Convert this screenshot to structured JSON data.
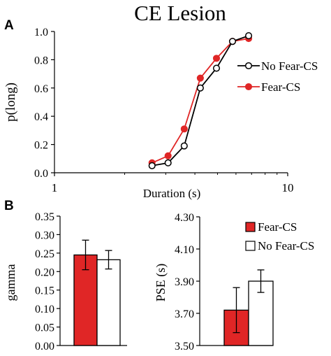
{
  "colors": {
    "fear": "#e02626",
    "nofear": "#ffffff",
    "stroke": "#000000"
  },
  "panels": {
    "a": "A",
    "b": "B"
  },
  "chart_data": [
    {
      "type": "line",
      "title": "CE Lesion",
      "xlabel": "Duration (s)",
      "ylabel": "p(long)",
      "x_scale": "log",
      "xlim": [
        1,
        10
      ],
      "ylim": [
        0,
        1
      ],
      "x_ticks": [
        "1",
        "10"
      ],
      "y_ticks": [
        "0.0",
        "0.2",
        "0.4",
        "0.6",
        "0.8",
        "1.0"
      ],
      "legend_position": "right",
      "series": [
        {
          "name": "No Fear-CS",
          "marker": "open-circle",
          "x": [
            2.62,
            3.07,
            3.6,
            4.22,
            4.95,
            5.8,
            6.8
          ],
          "y": [
            0.05,
            0.07,
            0.19,
            0.6,
            0.74,
            0.93,
            0.97
          ]
        },
        {
          "name": "Fear-CS",
          "marker": "filled-circle",
          "x": [
            2.62,
            3.07,
            3.6,
            4.22,
            4.95,
            5.8,
            6.8
          ],
          "y": [
            0.07,
            0.12,
            0.31,
            0.67,
            0.81,
            0.93,
            0.95
          ]
        }
      ]
    },
    {
      "type": "bar",
      "ylabel": "gamma",
      "ylim": [
        0,
        0.35
      ],
      "y_ticks": [
        "0.00",
        "0.05",
        "0.10",
        "0.15",
        "0.20",
        "0.25",
        "0.30",
        "0.35"
      ],
      "series": [
        {
          "name": "Fear-CS",
          "value": 0.245,
          "error": 0.04
        },
        {
          "name": "No Fear-CS",
          "value": 0.232,
          "error": 0.025
        }
      ]
    },
    {
      "type": "bar",
      "ylabel": "PSE (s)",
      "ylim": [
        3.5,
        4.3
      ],
      "y_ticks": [
        "3.50",
        "3.70",
        "3.90",
        "4.10",
        "4.30"
      ],
      "legend_position": "top-right",
      "series": [
        {
          "name": "Fear-CS",
          "value": 3.72,
          "error": 0.14
        },
        {
          "name": "No Fear-CS",
          "value": 3.9,
          "error": 0.07
        }
      ]
    }
  ]
}
